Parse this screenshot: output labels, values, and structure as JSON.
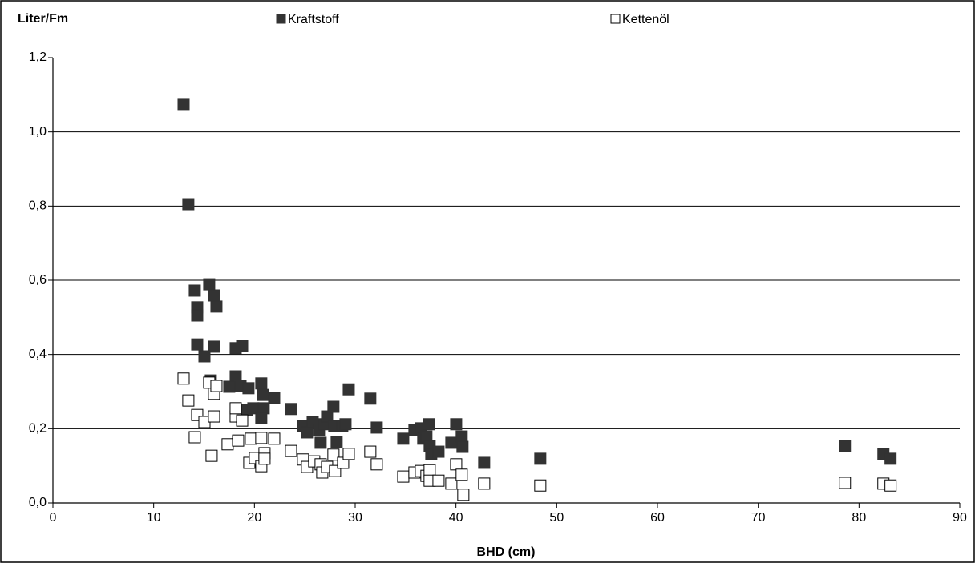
{
  "chart_data": {
    "type": "scatter",
    "ylabel": "Liter/Fm",
    "xlabel": "BHD (cm)",
    "xlim": [
      0,
      90
    ],
    "xticks": [
      0,
      10,
      20,
      30,
      40,
      50,
      60,
      70,
      80,
      90
    ],
    "ylim": [
      0,
      1.2
    ],
    "yticks": [
      {
        "value": 0,
        "label": "0,0"
      },
      {
        "value": 0.2,
        "label": "0,2"
      },
      {
        "value": 0.4,
        "label": "0,4"
      },
      {
        "value": 0.6,
        "label": "0,6"
      },
      {
        "value": 0.8,
        "label": "0,8"
      },
      {
        "value": 1.0,
        "label": "1,0"
      },
      {
        "value": 1.2,
        "label": "1,2"
      }
    ],
    "grid": true,
    "legend": "top",
    "series": [
      {
        "name": "Kraftstoff",
        "color": "#333333",
        "fill": "#333333",
        "x": [
          12.97,
          13.44,
          14.08,
          14.32,
          14.32,
          14.32,
          15.04,
          15.51,
          15.99,
          16.23,
          15.99,
          15.67,
          18.14,
          18.78,
          18.14,
          17.5,
          18.62,
          19.41,
          19.25,
          19.89,
          20.68,
          20.84,
          20.92,
          20.68,
          21.96,
          23.63,
          24.82,
          25.22,
          25.78,
          26.41,
          26.57,
          26.89,
          27.21,
          27.84,
          27.92,
          28.16,
          28.72,
          29.04,
          29.36,
          31.5,
          32.14,
          34.77,
          35.88,
          36.52,
          36.75,
          37.07,
          37.31,
          37.39,
          37.55,
          38.27,
          39.54,
          40.02,
          40.57,
          40.65,
          42.8,
          48.37,
          78.6,
          82.42,
          83.13
        ],
        "values": [
          1.075,
          0.805,
          0.572,
          0.527,
          0.505,
          0.427,
          0.395,
          0.589,
          0.559,
          0.529,
          0.421,
          0.33,
          0.417,
          0.423,
          0.341,
          0.313,
          0.315,
          0.309,
          0.25,
          0.255,
          0.322,
          0.291,
          0.255,
          0.229,
          0.283,
          0.253,
          0.207,
          0.19,
          0.218,
          0.196,
          0.162,
          0.212,
          0.233,
          0.259,
          0.207,
          0.164,
          0.207,
          0.212,
          0.306,
          0.281,
          0.203,
          0.173,
          0.196,
          0.201,
          0.173,
          0.179,
          0.212,
          0.153,
          0.132,
          0.138,
          0.162,
          0.212,
          0.179,
          0.151,
          0.108,
          0.119,
          0.153,
          0.132,
          0.119
        ]
      },
      {
        "name": "Kettenöl",
        "color": "#000000",
        "fill": "#ffffff",
        "x": [
          12.97,
          13.44,
          14.08,
          14.32,
          15.04,
          15.51,
          15.99,
          16.23,
          15.99,
          15.75,
          17.34,
          18.14,
          18.14,
          18.38,
          18.78,
          19.49,
          19.65,
          20.05,
          20.68,
          20.68,
          21.0,
          21.0,
          21.96,
          23.63,
          24.82,
          25.22,
          25.93,
          26.57,
          26.73,
          27.21,
          27.84,
          28.0,
          28.8,
          29.36,
          31.5,
          32.14,
          34.77,
          35.88,
          36.52,
          37.07,
          37.39,
          37.39,
          38.27,
          39.54,
          40.02,
          40.57,
          40.73,
          42.8,
          48.37,
          78.6,
          82.42,
          83.13
        ],
        "values": [
          0.335,
          0.276,
          0.177,
          0.237,
          0.218,
          0.324,
          0.294,
          0.315,
          0.233,
          0.127,
          0.158,
          0.233,
          0.255,
          0.168,
          0.222,
          0.108,
          0.173,
          0.121,
          0.099,
          0.175,
          0.134,
          0.119,
          0.173,
          0.14,
          0.117,
          0.097,
          0.112,
          0.104,
          0.082,
          0.097,
          0.13,
          0.086,
          0.108,
          0.132,
          0.138,
          0.104,
          0.071,
          0.082,
          0.086,
          0.073,
          0.088,
          0.06,
          0.06,
          0.052,
          0.104,
          0.076,
          0.022,
          0.052,
          0.047,
          0.054,
          0.052,
          0.047
        ]
      }
    ]
  }
}
